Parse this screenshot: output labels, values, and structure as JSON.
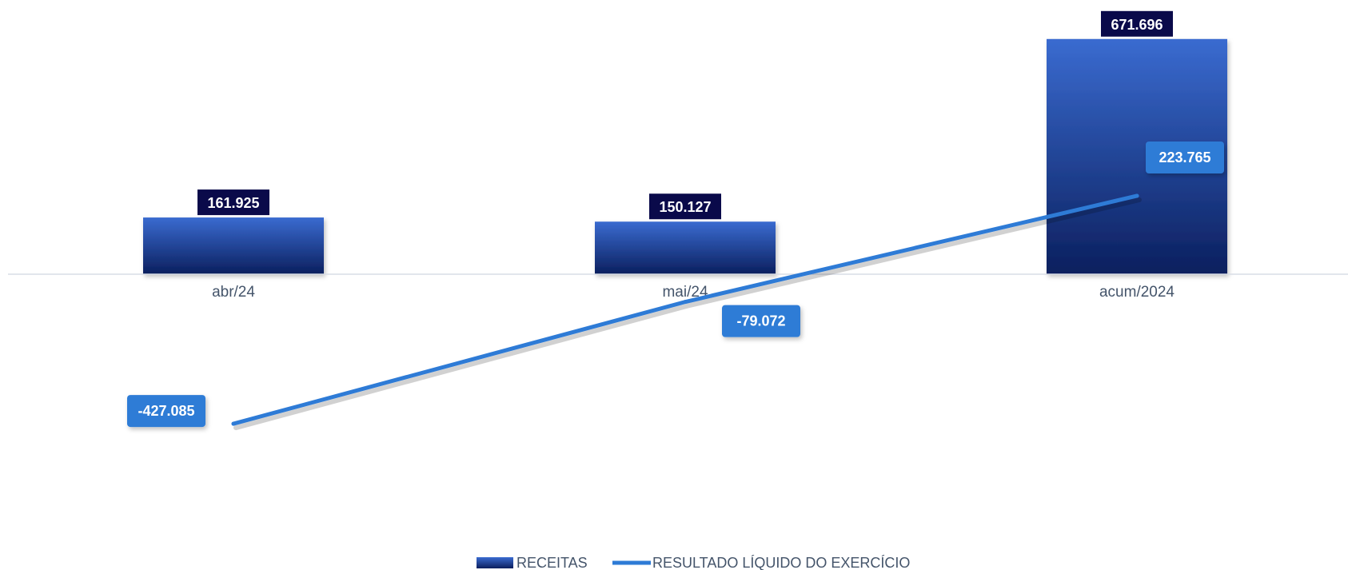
{
  "chart_data": {
    "type": "bar",
    "categories": [
      "abr/24",
      "mai/24",
      "acum/2024"
    ],
    "series": [
      {
        "name": "RECEITAS",
        "type": "bar",
        "values": [
          161925,
          150127,
          671696
        ],
        "labels": [
          "161.925",
          "150.127",
          "671.696"
        ]
      },
      {
        "name": "RESULTADO LÍQUIDO DO EXERCÍCIO",
        "type": "line",
        "values": [
          -427085,
          -79072,
          223765
        ],
        "labels": [
          "-427.085",
          "-79.072",
          "223.765"
        ]
      }
    ],
    "ylim": [
      -760000,
      700000
    ],
    "grid": false,
    "legend": "bottom-center",
    "colors": {
      "bar_top": "#3a6bd0",
      "bar_bottom": "#0b1f5e",
      "bar_label_bg": "#0a0a4a",
      "line": "#2e7bd6",
      "line_label_bg": "#2e7bd6",
      "axis": "#d9dde6"
    }
  }
}
